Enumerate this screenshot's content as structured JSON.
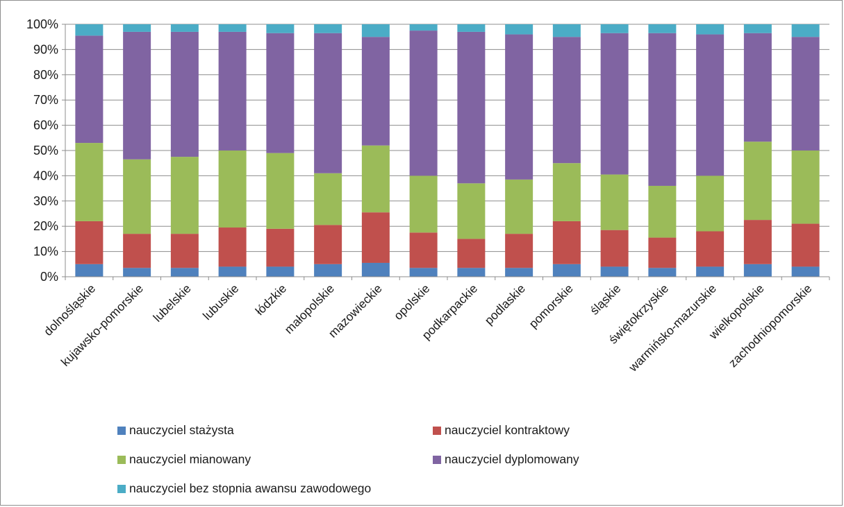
{
  "chart_data": {
    "type": "bar",
    "stacked": true,
    "percent": true,
    "categories": [
      "dolnośląskie",
      "kujawsko-pomorskie",
      "lubelskie",
      "lubuskie",
      "łódzkie",
      "małopolskie",
      "mazowieckie",
      "opolskie",
      "podkarpackie",
      "podlaskie",
      "pomorskie",
      "śląskie",
      "świętokrzyskie",
      "warmińsko-mazurskie",
      "wielkopolskie",
      "zachodniopomorskie"
    ],
    "series": [
      {
        "name": "nauczyciel stażysta",
        "color": "#4f81bd",
        "values": [
          5.0,
          3.5,
          3.5,
          4.0,
          4.0,
          5.0,
          5.5,
          3.5,
          3.5,
          3.5,
          5.0,
          4.0,
          3.5,
          4.0,
          5.0,
          4.0
        ]
      },
      {
        "name": "nauczyciel kontraktowy",
        "color": "#c0504d",
        "values": [
          17.0,
          13.5,
          13.5,
          15.5,
          15.0,
          15.5,
          20.0,
          14.0,
          11.5,
          13.5,
          17.0,
          14.5,
          12.0,
          14.0,
          17.5,
          17.0
        ]
      },
      {
        "name": "nauczyciel mianowany",
        "color": "#9bbb59",
        "values": [
          31.0,
          29.5,
          30.5,
          30.5,
          30.0,
          20.5,
          26.5,
          22.5,
          22.0,
          21.5,
          23.0,
          22.0,
          20.5,
          22.0,
          31.0,
          29.0
        ]
      },
      {
        "name": "nauczyciel dyplomowany",
        "color": "#8064a2",
        "values": [
          42.5,
          50.5,
          49.5,
          47.0,
          47.5,
          55.5,
          43.0,
          57.5,
          60.0,
          57.5,
          50.0,
          56.0,
          60.5,
          56.0,
          43.0,
          45.0
        ]
      },
      {
        "name": "nauczyciel bez stopnia awansu zawodowego",
        "color": "#4bacc6",
        "values": [
          4.5,
          3.0,
          3.0,
          3.0,
          3.5,
          3.5,
          5.0,
          2.5,
          3.0,
          4.0,
          5.0,
          3.5,
          3.5,
          4.0,
          3.5,
          5.0
        ]
      }
    ],
    "ylim": [
      0,
      100
    ],
    "yticks": [
      "0%",
      "10%",
      "20%",
      "30%",
      "40%",
      "50%",
      "60%",
      "70%",
      "80%",
      "90%",
      "100%"
    ],
    "grid": true,
    "legend_position": "bottom"
  }
}
